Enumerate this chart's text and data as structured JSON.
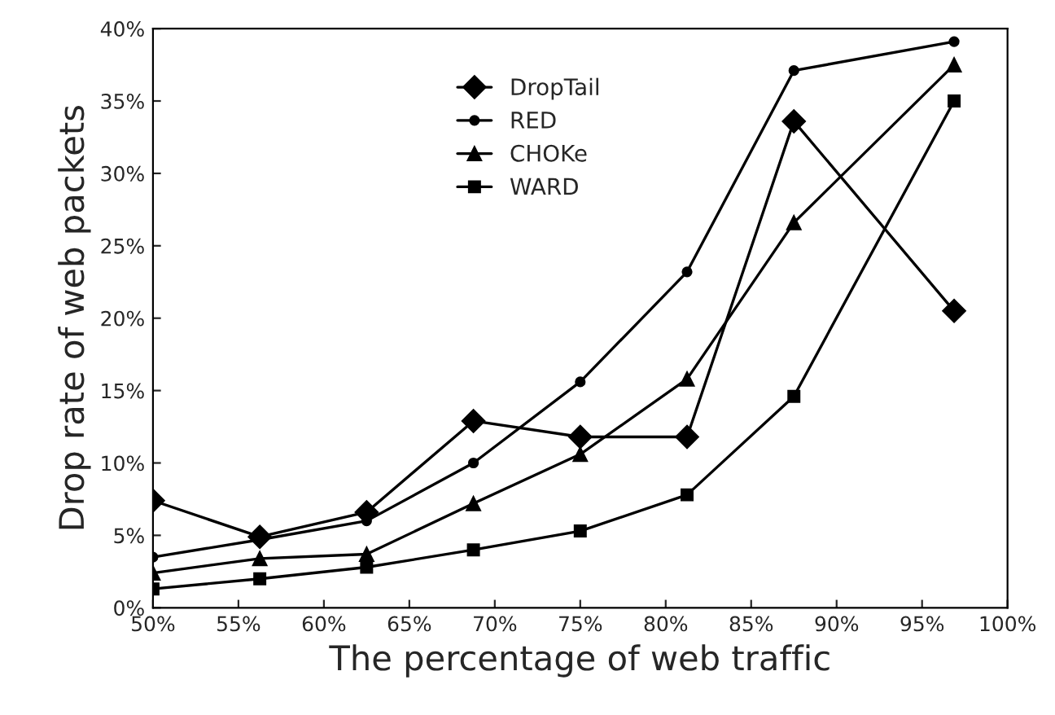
{
  "chart_data": {
    "type": "line",
    "xlabel": "The percentage of web traffic",
    "ylabel": "Drop rate of web packets",
    "x": [
      50,
      56.25,
      62.5,
      68.75,
      75,
      81.25,
      87.5,
      96.875
    ],
    "series": [
      {
        "name": "DropTail",
        "color": "#000000",
        "marker": "diamond",
        "values": [
          7.4,
          4.9,
          6.6,
          12.9,
          11.8,
          11.8,
          33.6,
          20.5
        ]
      },
      {
        "name": "RED",
        "color": "#000000",
        "marker": "circle",
        "values": [
          3.5,
          4.7,
          6.0,
          10.0,
          15.6,
          23.2,
          37.1,
          39.1
        ]
      },
      {
        "name": "CHOKe",
        "color": "#000000",
        "marker": "triangle",
        "values": [
          2.4,
          3.4,
          3.7,
          7.2,
          10.6,
          15.8,
          26.6,
          37.5
        ]
      },
      {
        "name": "WARD",
        "color": "#000000",
        "marker": "square",
        "values": [
          1.3,
          2.0,
          2.8,
          4.0,
          5.3,
          7.8,
          14.6,
          35.0
        ]
      }
    ],
    "xlim": [
      50,
      100
    ],
    "xticks": [
      {
        "value": 50,
        "label": "50%"
      },
      {
        "value": 55,
        "label": "55%"
      },
      {
        "value": 60,
        "label": "60%"
      },
      {
        "value": 65,
        "label": "65%"
      },
      {
        "value": 70,
        "label": "70%"
      },
      {
        "value": 75,
        "label": "75%"
      },
      {
        "value": 80,
        "label": "80%"
      },
      {
        "value": 85,
        "label": "85%"
      },
      {
        "value": 90,
        "label": "90%"
      },
      {
        "value": 95,
        "label": "95%"
      },
      {
        "value": 100,
        "label": "100%"
      }
    ],
    "ylim": [
      0,
      40
    ],
    "yticks": [
      {
        "value": 0,
        "label": "0%"
      },
      {
        "value": 5,
        "label": "5%"
      },
      {
        "value": 10,
        "label": "10%"
      },
      {
        "value": 15,
        "label": "15%"
      },
      {
        "value": 20,
        "label": "20%"
      },
      {
        "value": 25,
        "label": "25%"
      },
      {
        "value": 30,
        "label": "30%"
      },
      {
        "value": 35,
        "label": "35%"
      },
      {
        "value": 40,
        "label": "40%"
      }
    ],
    "grid": false,
    "legend": "top center",
    "line_style": "solid"
  }
}
